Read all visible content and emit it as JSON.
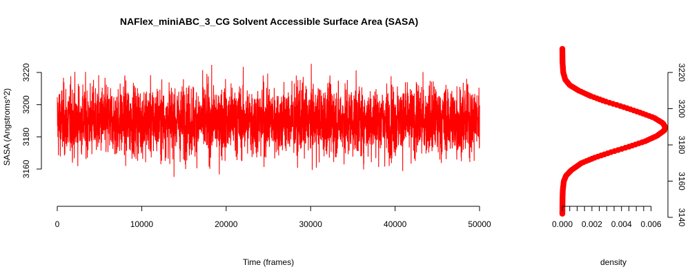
{
  "chart_data": [
    {
      "type": "line",
      "title": "NAFlex_miniABC_3_CG Solvent Accessible Surface Area (SASA)",
      "xlabel": "Time (frames)",
      "ylabel": "SASA (Angstroms^2)",
      "xlim": [
        0,
        50000
      ],
      "ylim": [
        3160,
        3220
      ],
      "x_ticks": [
        "0",
        "10000",
        "20000",
        "30000",
        "40000",
        "50000"
      ],
      "y_ticks": [
        "3160",
        "3180",
        "3200",
        "3220"
      ],
      "series": [
        {
          "color": "#ff0000",
          "n_frames": 50000,
          "mean": 3190,
          "typical_range": [
            3168,
            3212
          ],
          "min": 3144,
          "max": 3233
        }
      ],
      "grid": false,
      "legend": "none"
    },
    {
      "type": "line",
      "title": "",
      "xlabel": "density",
      "ylabel": "",
      "y_axis_side": "right",
      "xlim": [
        0,
        0.007
      ],
      "ylim": [
        3140,
        3220
      ],
      "x_ticks": [
        "0.000",
        "0.002",
        "0.004",
        "0.006"
      ],
      "y_ticks": [
        "3140",
        "3160",
        "3180",
        "3200",
        "3220"
      ],
      "series": [
        {
          "color": "#ff0000",
          "marker": "circle",
          "density_curve": [
            {
              "sasa": 3142,
              "density": 0.0
            },
            {
              "sasa": 3150,
              "density": 1e-05
            },
            {
              "sasa": 3155,
              "density": 3e-05
            },
            {
              "sasa": 3160,
              "density": 0.0001
            },
            {
              "sasa": 3163,
              "density": 0.00025
            },
            {
              "sasa": 3166,
              "density": 0.0006
            },
            {
              "sasa": 3170,
              "density": 0.0013
            },
            {
              "sasa": 3173,
              "density": 0.0022
            },
            {
              "sasa": 3176,
              "density": 0.0033
            },
            {
              "sasa": 3179,
              "density": 0.0045
            },
            {
              "sasa": 3182,
              "density": 0.0056
            },
            {
              "sasa": 3185,
              "density": 0.0064
            },
            {
              "sasa": 3188,
              "density": 0.0069
            },
            {
              "sasa": 3190,
              "density": 0.00695
            },
            {
              "sasa": 3192,
              "density": 0.0068
            },
            {
              "sasa": 3195,
              "density": 0.0062
            },
            {
              "sasa": 3198,
              "density": 0.0052
            },
            {
              "sasa": 3201,
              "density": 0.0041
            },
            {
              "sasa": 3204,
              "density": 0.0029
            },
            {
              "sasa": 3207,
              "density": 0.0019
            },
            {
              "sasa": 3210,
              "density": 0.0011
            },
            {
              "sasa": 3213,
              "density": 0.0005
            },
            {
              "sasa": 3216,
              "density": 0.0002
            },
            {
              "sasa": 3220,
              "density": 6e-05
            },
            {
              "sasa": 3226,
              "density": 1e-05
            },
            {
              "sasa": 3233,
              "density": 0.0
            }
          ]
        }
      ],
      "grid": false,
      "legend": "none"
    }
  ]
}
